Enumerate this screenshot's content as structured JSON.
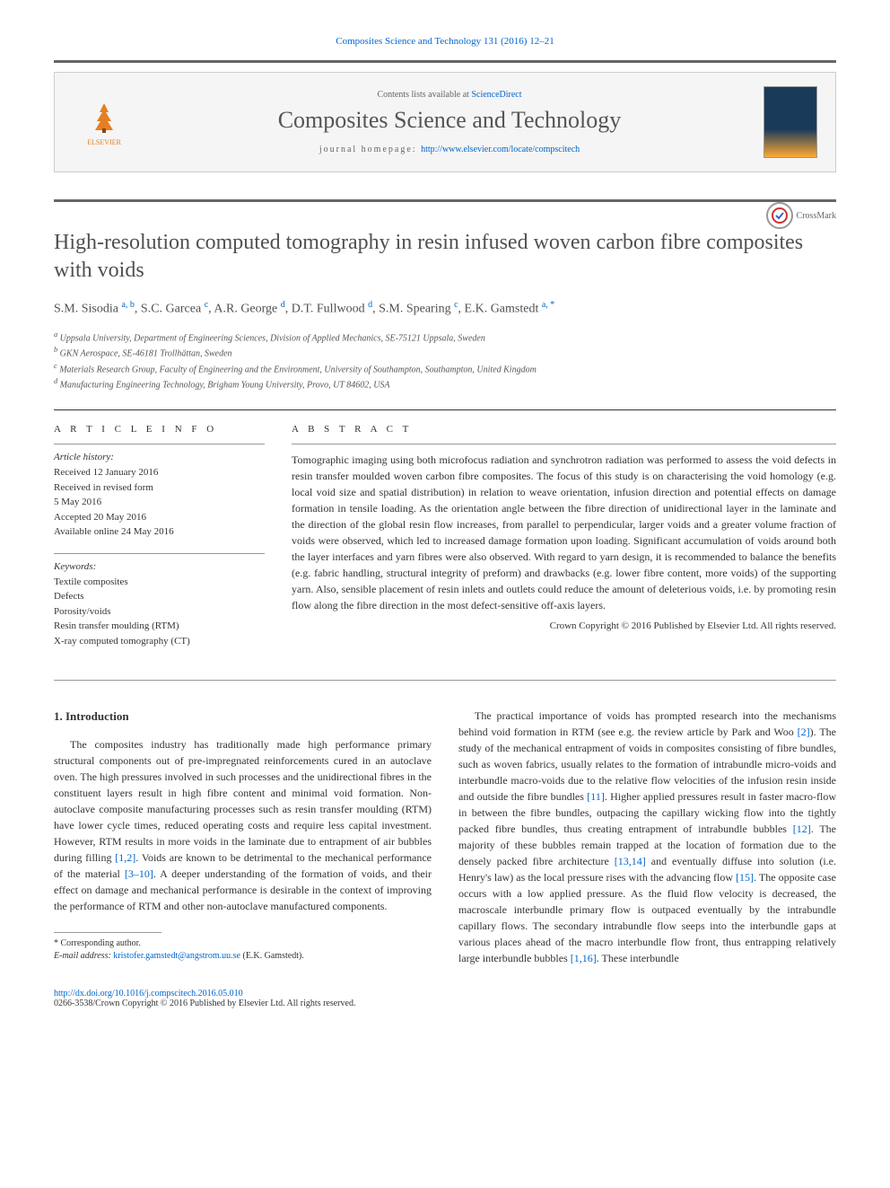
{
  "header": {
    "citation": "Composites Science and Technology 131 (2016) 12–21",
    "contents_prefix": "Contents lists available at ",
    "contents_link": "ScienceDirect",
    "journal_name": "Composites Science and Technology",
    "homepage_prefix": "journal homepage: ",
    "homepage_url": "http://www.elsevier.com/locate/compscitech",
    "publisher": "ELSEVIER",
    "crossmark": "CrossMark"
  },
  "article": {
    "title": "High-resolution computed tomography in resin infused woven carbon fibre composites with voids",
    "authors_html": "S.M. Sisodia <sup>a, b</sup>, S.C. Garcea <sup>c</sup>, A.R. George <sup>d</sup>, D.T. Fullwood <sup>d</sup>, S.M. Spearing <sup>c</sup>, E.K. Gamstedt <sup>a, *</sup>",
    "affiliations": [
      "a Uppsala University, Department of Engineering Sciences, Division of Applied Mechanics, SE-75121 Uppsala, Sweden",
      "b GKN Aerospace, SE-46181 Trollhättan, Sweden",
      "c Materials Research Group, Faculty of Engineering and the Environment, University of Southampton, Southampton, United Kingdom",
      "d Manufacturing Engineering Technology, Brigham Young University, Provo, UT 84602, USA"
    ]
  },
  "info": {
    "heading": "A R T I C L E   I N F O",
    "history_label": "Article history:",
    "history": [
      "Received 12 January 2016",
      "Received in revised form",
      "5 May 2016",
      "Accepted 20 May 2016",
      "Available online 24 May 2016"
    ],
    "keywords_label": "Keywords:",
    "keywords": [
      "Textile composites",
      "Defects",
      "Porosity/voids",
      "Resin transfer moulding (RTM)",
      "X-ray computed tomography (CT)"
    ]
  },
  "abstract": {
    "heading": "A B S T R A C T",
    "text": "Tomographic imaging using both microfocus radiation and synchrotron radiation was performed to assess the void defects in resin transfer moulded woven carbon fibre composites. The focus of this study is on characterising the void homology (e.g. local void size and spatial distribution) in relation to weave orientation, infusion direction and potential effects on damage formation in tensile loading. As the orientation angle between the fibre direction of unidirectional layer in the laminate and the direction of the global resin flow increases, from parallel to perpendicular, larger voids and a greater volume fraction of voids were observed, which led to increased damage formation upon loading. Significant accumulation of voids around both the layer interfaces and yarn fibres were also observed. With regard to yarn design, it is recommended to balance the benefits (e.g. fabric handling, structural integrity of preform) and drawbacks (e.g. lower fibre content, more voids) of the supporting yarn. Also, sensible placement of resin inlets and outlets could reduce the amount of deleterious voids, i.e. by promoting resin flow along the fibre direction in the most defect-sensitive off-axis layers.",
    "copyright": "Crown Copyright © 2016 Published by Elsevier Ltd. All rights reserved."
  },
  "body": {
    "section_title": "1. Introduction",
    "col1": "The composites industry has traditionally made high performance primary structural components out of pre-impregnated reinforcements cured in an autoclave oven. The high pressures involved in such processes and the unidirectional fibres in the constituent layers result in high fibre content and minimal void formation. Non-autoclave composite manufacturing processes such as resin transfer moulding (RTM) have lower cycle times, reduced operating costs and require less capital investment. However, RTM results in more voids in the laminate due to entrapment of air bubbles during filling [1,2]. Voids are known to be detrimental to the mechanical performance of the material [3–10]. A deeper understanding of the formation of voids, and their effect on damage and mechanical performance is desirable in the context of improving the performance of RTM and other non-autoclave manufactured components.",
    "col2": "The practical importance of voids has prompted research into the mechanisms behind void formation in RTM (see e.g. the review article by Park and Woo [2]). The study of the mechanical entrapment of voids in composites consisting of fibre bundles, such as woven fabrics, usually relates to the formation of intrabundle micro-voids and interbundle macro-voids due to the relative flow velocities of the infusion resin inside and outside the fibre bundles [11]. Higher applied pressures result in faster macro-flow in between the fibre bundles, outpacing the capillary wicking flow into the tightly packed fibre bundles, thus creating entrapment of intrabundle bubbles [12]. The majority of these bubbles remain trapped at the location of formation due to the densely packed fibre architecture [13,14] and eventually diffuse into solution (i.e. Henry's law) as the local pressure rises with the advancing flow [15]. The opposite case occurs with a low applied pressure. As the fluid flow velocity is decreased, the macroscale interbundle primary flow is outpaced eventually by the intrabundle capillary flows. The secondary intrabundle flow seeps into the interbundle gaps at various places ahead of the macro interbundle flow front, thus entrapping relatively large interbundle bubbles [1,16]. These interbundle",
    "refs": {
      "r12": "[1,2]",
      "r310": "[3–10]",
      "r2": "[2]",
      "r11": "[11]",
      "r12b": "[12]",
      "r1314": "[13,14]",
      "r15": "[15]",
      "r116": "[1,16]"
    }
  },
  "footnote": {
    "marker": "* Corresponding author.",
    "email_label": "E-mail address: ",
    "email": "kristofer.gamstedt@angstrom.uu.se",
    "email_suffix": " (E.K. Gamstedt)."
  },
  "footer": {
    "doi": "http://dx.doi.org/10.1016/j.compscitech.2016.05.010",
    "issn_line": "0266-3538/Crown Copyright © 2016 Published by Elsevier Ltd. All rights reserved."
  },
  "colors": {
    "link": "#0066cc",
    "text": "#333333",
    "title_gray": "#505050",
    "border_dark": "#666666",
    "elsevier_orange": "#e67e22"
  }
}
